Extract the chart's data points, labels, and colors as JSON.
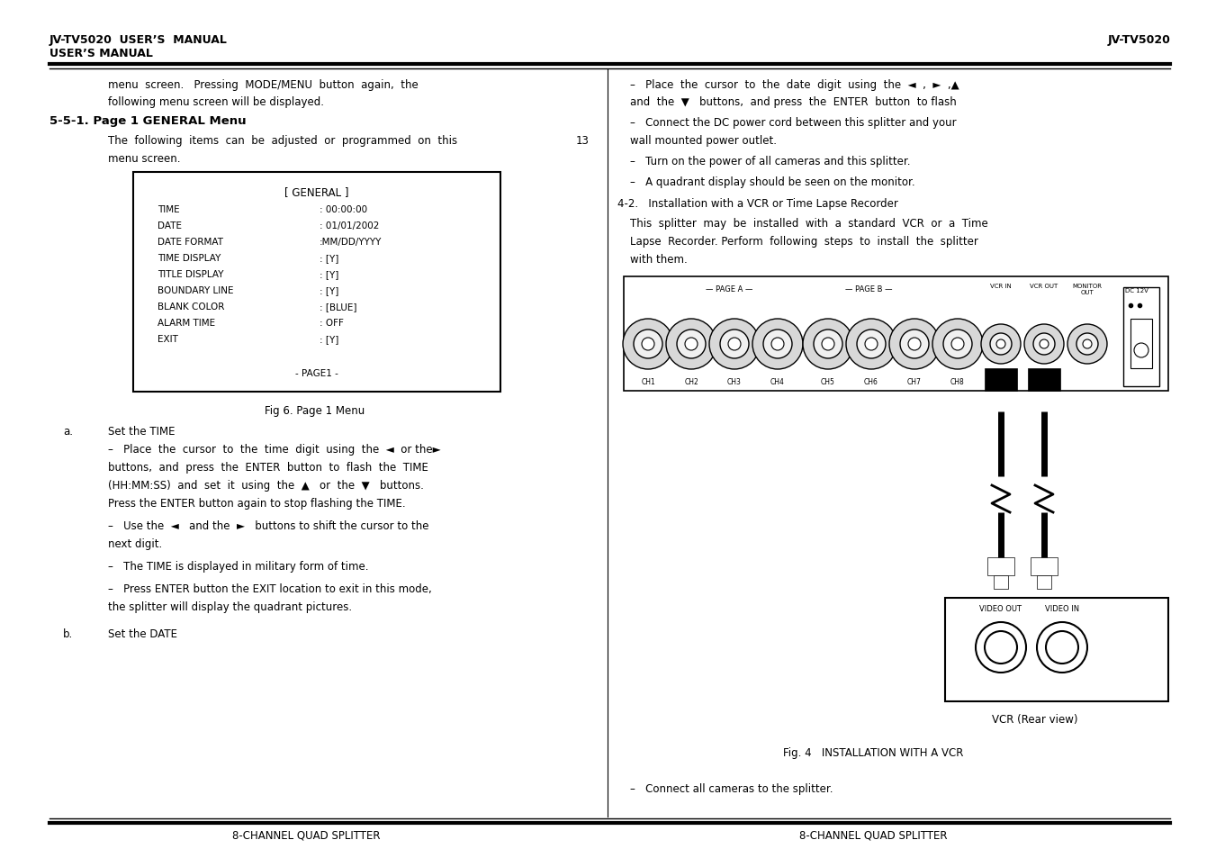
{
  "bg_color": "#ffffff",
  "text_color": "#000000",
  "left_header_line1": "JV-TV5020  USER’S  MANUAL",
  "left_header_line2": "USER’S MANUAL",
  "right_header": "JV-TV5020",
  "footer_left": "8-CHANNEL QUAD SPLITTER",
  "footer_right": "8-CHANNEL QUAD SPLITTER",
  "menu_items": [
    [
      "TIME",
      ": 00:00:00"
    ],
    [
      "DATE",
      ": 01/01/2002"
    ],
    [
      "DATE FORMAT",
      ":MM/DD/YYYY"
    ],
    [
      "TIME DISPLAY",
      ": [Y]"
    ],
    [
      "TITLE DISPLAY",
      ": [Y]"
    ],
    [
      "BOUNDARY LINE",
      ": [Y]"
    ],
    [
      "BLANK COLOR",
      ": [BLUE]"
    ],
    [
      "ALARM TIME",
      ": OFF"
    ],
    [
      "EXIT",
      ": [Y]"
    ]
  ],
  "ch_labels": [
    "CH1",
    "CH2",
    "CH3",
    "CH4",
    "CH5",
    "CH6",
    "CH7",
    "CH8"
  ]
}
